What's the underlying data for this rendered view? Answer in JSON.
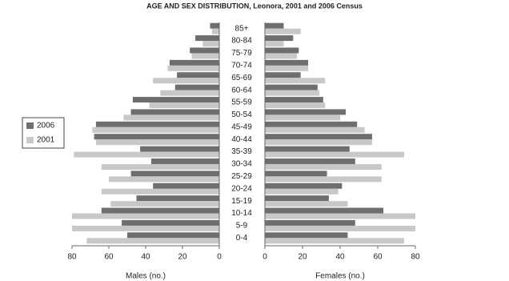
{
  "chart_data": [
    {
      "type": "bar",
      "title": "AGE AND SEX DISTRIBUTION, Leonora, 2001 and 2006 Census",
      "categories": [
        "0-4",
        "5-9",
        "10-14",
        "15-19",
        "20-24",
        "25-29",
        "30-34",
        "35-39",
        "40-44",
        "45-49",
        "50-54",
        "55-59",
        "60-64",
        "65-69",
        "70-74",
        "75-79",
        "80-84",
        "85+"
      ],
      "xlabel": "Males (no.)",
      "xlim": [
        80,
        0
      ],
      "xticks": [
        80,
        60,
        40,
        20,
        0
      ],
      "legend": "left",
      "series": [
        {
          "name": "2006",
          "color": "#6e6e6e",
          "values": [
            50,
            53,
            64,
            45,
            36,
            48,
            37,
            43,
            68,
            67,
            48,
            47,
            24,
            23,
            27,
            16,
            13,
            5
          ]
        },
        {
          "name": "2001",
          "color": "#c8c8c8",
          "values": [
            72,
            80,
            80,
            59,
            64,
            60,
            64,
            79,
            67,
            69,
            52,
            38,
            32,
            36,
            28,
            15,
            9,
            4
          ]
        }
      ]
    },
    {
      "type": "bar",
      "xlabel": "Females (no.)",
      "xlim": [
        0,
        80
      ],
      "xticks": [
        0,
        20,
        40,
        60,
        80
      ],
      "series": [
        {
          "color": "#6e6e6e",
          "values": [
            44,
            48,
            63,
            34,
            41,
            33,
            48,
            45,
            57,
            49,
            43,
            31,
            28,
            19,
            23,
            18,
            15,
            10
          ]
        },
        {
          "color": "#c8c8c8",
          "values": [
            74,
            80,
            80,
            44,
            39,
            62,
            62,
            74,
            57,
            53,
            40,
            32,
            29,
            32,
            23,
            17,
            10,
            19
          ]
        }
      ]
    }
  ]
}
